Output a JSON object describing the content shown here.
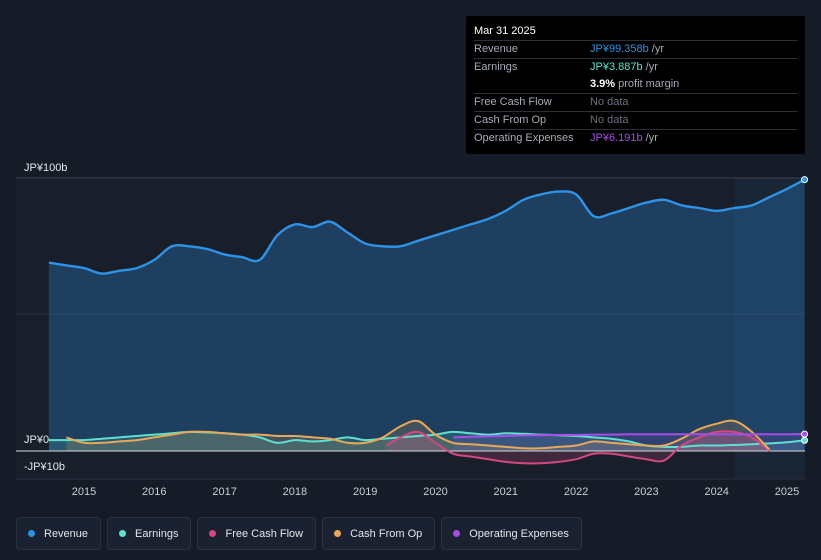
{
  "chart_data": {
    "type": "area",
    "title": "",
    "x_ticks": [
      "2015",
      "2016",
      "2017",
      "2018",
      "2019",
      "2020",
      "2021",
      "2022",
      "2023",
      "2024",
      "2025"
    ],
    "y_labels": [
      "JP¥100b",
      "JP¥0",
      "-JP¥10b"
    ],
    "ylim": [
      -10,
      100
    ],
    "xlim": [
      2014.5,
      2025.25
    ],
    "forecast_start": 2024.25,
    "series": [
      {
        "name": "Revenue",
        "color": "#2e92e6",
        "x": [
          2014.5,
          2014.75,
          2015.0,
          2015.25,
          2015.5,
          2015.75,
          2016.0,
          2016.25,
          2016.5,
          2016.75,
          2017.0,
          2017.25,
          2017.5,
          2017.75,
          2018.0,
          2018.25,
          2018.5,
          2018.75,
          2019.0,
          2019.25,
          2019.5,
          2019.75,
          2020.0,
          2020.25,
          2020.5,
          2020.75,
          2021.0,
          2021.25,
          2021.5,
          2021.75,
          2022.0,
          2022.25,
          2022.5,
          2022.75,
          2023.0,
          2023.25,
          2023.5,
          2023.75,
          2024.0,
          2024.25,
          2024.5,
          2024.75,
          2025.0,
          2025.25
        ],
        "values": [
          69,
          68,
          67,
          65,
          66,
          67,
          70,
          75,
          75,
          74,
          72,
          71,
          70,
          79,
          83,
          82,
          84,
          80,
          76,
          75,
          75,
          77,
          79,
          81,
          83,
          85,
          88,
          92,
          94,
          95,
          94,
          86,
          87,
          89,
          91,
          92,
          90,
          89,
          88,
          89,
          90,
          93,
          96,
          99.4
        ]
      },
      {
        "name": "Earnings",
        "color": "#5ee0d0",
        "x": [
          2014.5,
          2014.75,
          2015.0,
          2015.25,
          2015.5,
          2015.75,
          2016.0,
          2016.25,
          2016.5,
          2016.75,
          2017.0,
          2017.25,
          2017.5,
          2017.75,
          2018.0,
          2018.25,
          2018.5,
          2018.75,
          2019.0,
          2019.25,
          2019.5,
          2019.75,
          2020.0,
          2020.25,
          2020.5,
          2020.75,
          2021.0,
          2021.25,
          2021.5,
          2021.75,
          2022.0,
          2022.25,
          2022.5,
          2022.75,
          2023.0,
          2023.25,
          2023.5,
          2023.75,
          2024.0,
          2024.25,
          2024.5,
          2024.75,
          2025.0,
          2025.25
        ],
        "values": [
          4,
          4,
          4,
          4.5,
          5,
          5.5,
          6,
          6.5,
          7,
          6.8,
          6.5,
          6,
          5,
          3,
          4,
          3.5,
          4,
          5,
          4,
          4.5,
          5,
          5.5,
          6,
          7,
          6.5,
          6,
          6.5,
          6.3,
          6,
          5.8,
          5.5,
          5,
          4.5,
          3.5,
          2,
          1.5,
          1.5,
          2,
          2,
          2.2,
          2.5,
          2.8,
          3.2,
          3.887
        ]
      },
      {
        "name": "Free Cash Flow",
        "color": "#d2487f",
        "x": [
          2019.3,
          2019.5,
          2019.75,
          2020.0,
          2020.25,
          2020.5,
          2020.75,
          2021.0,
          2021.25,
          2021.5,
          2021.75,
          2022.0,
          2022.25,
          2022.5,
          2022.75,
          2023.0,
          2023.25,
          2023.5,
          2023.75,
          2024.0,
          2024.25,
          2024.5,
          2024.75
        ],
        "values": [
          2,
          5,
          7,
          3,
          -1,
          -2,
          -3,
          -4,
          -4.5,
          -4.5,
          -4,
          -3,
          -1,
          -1,
          -2,
          -3,
          -3.5,
          2,
          5,
          7,
          7,
          5,
          0
        ]
      },
      {
        "name": "Cash From Op",
        "color": "#e8a857",
        "x": [
          2014.75,
          2015.0,
          2015.25,
          2015.5,
          2015.75,
          2016.0,
          2016.25,
          2016.5,
          2016.75,
          2017.0,
          2017.25,
          2017.5,
          2017.75,
          2018.0,
          2018.25,
          2018.5,
          2018.75,
          2019.0,
          2019.25,
          2019.5,
          2019.75,
          2020.0,
          2020.25,
          2020.5,
          2020.75,
          2021.0,
          2021.25,
          2021.5,
          2021.75,
          2022.0,
          2022.25,
          2022.5,
          2022.75,
          2023.0,
          2023.25,
          2023.5,
          2023.75,
          2024.0,
          2024.25,
          2024.5,
          2024.75
        ],
        "values": [
          5,
          3,
          3,
          3.5,
          4,
          5,
          6,
          7,
          7,
          6.5,
          6,
          6,
          5.5,
          5.5,
          5,
          4.5,
          3,
          3,
          5,
          9,
          11,
          6,
          3,
          2.5,
          2,
          1.5,
          1,
          1,
          1.5,
          2,
          3.5,
          3,
          2.5,
          2,
          2,
          4.5,
          8,
          10,
          11,
          7,
          0.5
        ]
      },
      {
        "name": "Operating Expenses",
        "color": "#a64de8",
        "x": [
          2020.25,
          2020.5,
          2020.75,
          2021.0,
          2021.25,
          2021.5,
          2021.75,
          2022.0,
          2022.25,
          2022.5,
          2022.75,
          2023.0,
          2023.25,
          2023.5,
          2023.75,
          2024.0,
          2024.25,
          2024.5,
          2024.75,
          2025.0,
          2025.25
        ],
        "values": [
          5,
          5.2,
          5.4,
          5.5,
          5.7,
          5.8,
          5.9,
          5.9,
          6,
          6,
          6.1,
          6.1,
          6.1,
          6.1,
          6.1,
          6.1,
          6.1,
          6.1,
          6.15,
          6.17,
          6.191
        ]
      }
    ]
  },
  "tooltip": {
    "date": "Mar 31 2025",
    "rows": [
      {
        "label": "Revenue",
        "value": "JP¥99.358b",
        "unit": " /yr",
        "color": "#2e92e6"
      },
      {
        "label": "Earnings",
        "value": "JP¥3.887b",
        "unit": " /yr",
        "color": "#5ee0d0"
      },
      {
        "label": "",
        "value": "3.9%",
        "unit": " profit margin",
        "color": "#ffffff"
      },
      {
        "label": "Free Cash Flow",
        "value": "No data",
        "unit": "",
        "color": "#6b717b"
      },
      {
        "label": "Cash From Op",
        "value": "No data",
        "unit": "",
        "color": "#6b717b"
      },
      {
        "label": "Operating Expenses",
        "value": "JP¥6.191b",
        "unit": " /yr",
        "color": "#a64de8"
      }
    ]
  },
  "legend": [
    {
      "label": "Revenue",
      "color": "#2e92e6"
    },
    {
      "label": "Earnings",
      "color": "#5ee0d0"
    },
    {
      "label": "Free Cash Flow",
      "color": "#d2487f"
    },
    {
      "label": "Cash From Op",
      "color": "#e8a857"
    },
    {
      "label": "Operating Expenses",
      "color": "#a64de8"
    }
  ]
}
